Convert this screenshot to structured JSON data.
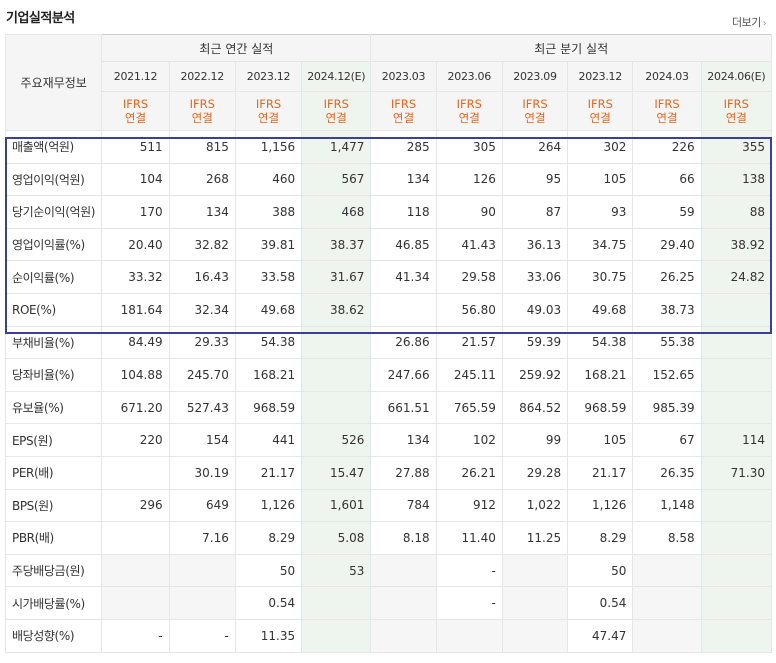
{
  "header": {
    "title": "기업실적분석",
    "more_label": "더보기"
  },
  "table": {
    "label_header": "주요재무정보",
    "groups": [
      "최근 연간 실적",
      "최근 분기 실적"
    ],
    "periods": [
      "2021.12",
      "2022.12",
      "2023.12",
      "2024.12(E)",
      "2023.03",
      "2023.06",
      "2023.09",
      "2023.12",
      "2024.03",
      "2024.06(E)"
    ],
    "ifrs_top": "IFRS",
    "ifrs_bottom": "연결",
    "rows": [
      {
        "label": "매출액(억원)",
        "values": [
          "511",
          "815",
          "1,156",
          "1,477",
          "285",
          "305",
          "264",
          "302",
          "226",
          "355"
        ]
      },
      {
        "label": "영업이익(억원)",
        "values": [
          "104",
          "268",
          "460",
          "567",
          "134",
          "126",
          "95",
          "105",
          "66",
          "138"
        ]
      },
      {
        "label": "당기순이익(억원)",
        "values": [
          "170",
          "134",
          "388",
          "468",
          "118",
          "90",
          "87",
          "93",
          "59",
          "88"
        ]
      },
      {
        "label": "영업이익률(%)",
        "values": [
          "20.40",
          "32.82",
          "39.81",
          "38.37",
          "46.85",
          "41.43",
          "36.13",
          "34.75",
          "29.40",
          "38.92"
        ]
      },
      {
        "label": "순이익률(%)",
        "values": [
          "33.32",
          "16.43",
          "33.58",
          "31.67",
          "41.34",
          "29.58",
          "33.06",
          "30.75",
          "26.25",
          "24.82"
        ]
      },
      {
        "label": "ROE(%)",
        "values": [
          "181.64",
          "32.34",
          "49.68",
          "38.62",
          "",
          "56.80",
          "49.03",
          "49.68",
          "38.73",
          ""
        ]
      },
      {
        "label": "부채비율(%)",
        "values": [
          "84.49",
          "29.33",
          "54.38",
          "",
          "26.86",
          "21.57",
          "59.39",
          "54.38",
          "55.38",
          ""
        ]
      },
      {
        "label": "당좌비율(%)",
        "values": [
          "104.88",
          "245.70",
          "168.21",
          "",
          "247.66",
          "245.11",
          "259.92",
          "168.21",
          "152.65",
          ""
        ]
      },
      {
        "label": "유보율(%)",
        "values": [
          "671.20",
          "527.43",
          "968.59",
          "",
          "661.51",
          "765.59",
          "864.52",
          "968.59",
          "985.39",
          ""
        ]
      },
      {
        "label": "EPS(원)",
        "values": [
          "220",
          "154",
          "441",
          "526",
          "134",
          "102",
          "99",
          "105",
          "67",
          "114"
        ]
      },
      {
        "label": "PER(배)",
        "values": [
          "",
          "30.19",
          "21.17",
          "15.47",
          "27.88",
          "26.21",
          "29.28",
          "21.17",
          "26.35",
          "71.30"
        ]
      },
      {
        "label": "BPS(원)",
        "values": [
          "296",
          "649",
          "1,126",
          "1,601",
          "784",
          "912",
          "1,022",
          "1,126",
          "1,148",
          ""
        ]
      },
      {
        "label": "PBR(배)",
        "values": [
          "",
          "7.16",
          "8.29",
          "5.08",
          "8.18",
          "11.40",
          "11.25",
          "8.29",
          "8.58",
          ""
        ]
      },
      {
        "label": "주당배당금(원)",
        "values": [
          "",
          "",
          "50",
          "53",
          "",
          "-",
          "",
          "50",
          "",
          ""
        ]
      },
      {
        "label": "시가배당률(%)",
        "values": [
          "",
          "",
          "0.54",
          "",
          "",
          "-",
          "",
          "0.54",
          "",
          ""
        ]
      },
      {
        "label": "배당성향(%)",
        "values": [
          "-",
          "-",
          "11.35",
          "",
          "",
          "",
          "",
          "47.47",
          "",
          ""
        ]
      }
    ],
    "empty_cells": {
      "13": [
        0,
        1,
        4,
        6,
        8,
        9
      ],
      "14": [
        0,
        1,
        4,
        6,
        8,
        9
      ],
      "15": [
        4,
        5,
        6,
        8,
        9
      ]
    },
    "estimate_columns": [
      3,
      9
    ],
    "group_start_rows": [
      0,
      3,
      6,
      9,
      13
    ],
    "highlight_rows": [
      0,
      1,
      2,
      3,
      4,
      5
    ]
  },
  "colors": {
    "highlight_border": "#3a3f9c",
    "ifrs_text": "#e8641b",
    "estimate_bg": "#eef5ee"
  }
}
